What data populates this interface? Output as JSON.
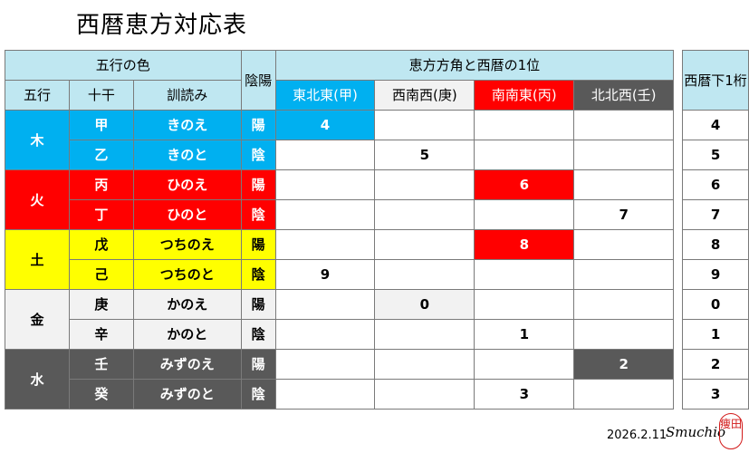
{
  "title": "西暦恵方対応表",
  "headers": {
    "color_group": "五行の色",
    "gogyo": "五行",
    "jikkan": "十干",
    "kunyomi": "訓読み",
    "inyo": "陰陽",
    "ehou_group": "恵方方角と西暦の1位",
    "directions": [
      "東北東(甲)",
      "西南西(庚)",
      "南南東(丙)",
      "北北西(壬)"
    ],
    "year_digit": "西暦下1桁"
  },
  "elements": [
    {
      "name": "木",
      "color": "#00b0f0",
      "text_color": "#ffffff"
    },
    {
      "name": "火",
      "color": "#ff0000",
      "text_color": "#ffffff"
    },
    {
      "name": "土",
      "color": "#ffff00",
      "text_color": "#000000"
    },
    {
      "name": "金",
      "color": "#f2f2f2",
      "text_color": "#000000"
    },
    {
      "name": "水",
      "color": "#595959",
      "text_color": "#ffffff"
    }
  ],
  "direction_colors": {
    "header": [
      "#00b0f0",
      "#f2f2f2",
      "#ff0000",
      "#595959"
    ],
    "header_text": [
      "#ffffff",
      "#000000",
      "#ffffff",
      "#ffffff"
    ]
  },
  "rows": [
    {
      "element": 0,
      "kan": "甲",
      "kunyomi": "きのえ",
      "inyo": "陽",
      "dir": 0,
      "value": "4",
      "highlight": true,
      "digit": "4"
    },
    {
      "element": 0,
      "kan": "乙",
      "kunyomi": "きのと",
      "inyo": "陰",
      "dir": 1,
      "value": "5",
      "highlight": false,
      "digit": "5"
    },
    {
      "element": 1,
      "kan": "丙",
      "kunyomi": "ひのえ",
      "inyo": "陽",
      "dir": 2,
      "value": "6",
      "highlight": true,
      "digit": "6"
    },
    {
      "element": 1,
      "kan": "丁",
      "kunyomi": "ひのと",
      "inyo": "陰",
      "dir": 3,
      "value": "7",
      "highlight": false,
      "digit": "7"
    },
    {
      "element": 2,
      "kan": "戊",
      "kunyomi": "つちのえ",
      "inyo": "陽",
      "dir": 2,
      "value": "8",
      "highlight": true,
      "digit": "8"
    },
    {
      "element": 2,
      "kan": "己",
      "kunyomi": "つちのと",
      "inyo": "陰",
      "dir": 0,
      "value": "9",
      "highlight": false,
      "digit": "9"
    },
    {
      "element": 3,
      "kan": "庚",
      "kunyomi": "かのえ",
      "inyo": "陽",
      "dir": 1,
      "value": "0",
      "highlight": true,
      "digit": "0"
    },
    {
      "element": 3,
      "kan": "辛",
      "kunyomi": "かのと",
      "inyo": "陰",
      "dir": 2,
      "value": "1",
      "highlight": false,
      "digit": "1"
    },
    {
      "element": 4,
      "kan": "壬",
      "kunyomi": "みずのえ",
      "inyo": "陽",
      "dir": 3,
      "value": "2",
      "highlight": true,
      "digit": "2"
    },
    {
      "element": 4,
      "kan": "癸",
      "kunyomi": "みずのと",
      "inyo": "陰",
      "dir": 2,
      "value": "3",
      "highlight": false,
      "digit": "3"
    }
  ],
  "footer": {
    "date": "2026.2.11",
    "signature": "Smuchio",
    "seal": "痩田"
  }
}
